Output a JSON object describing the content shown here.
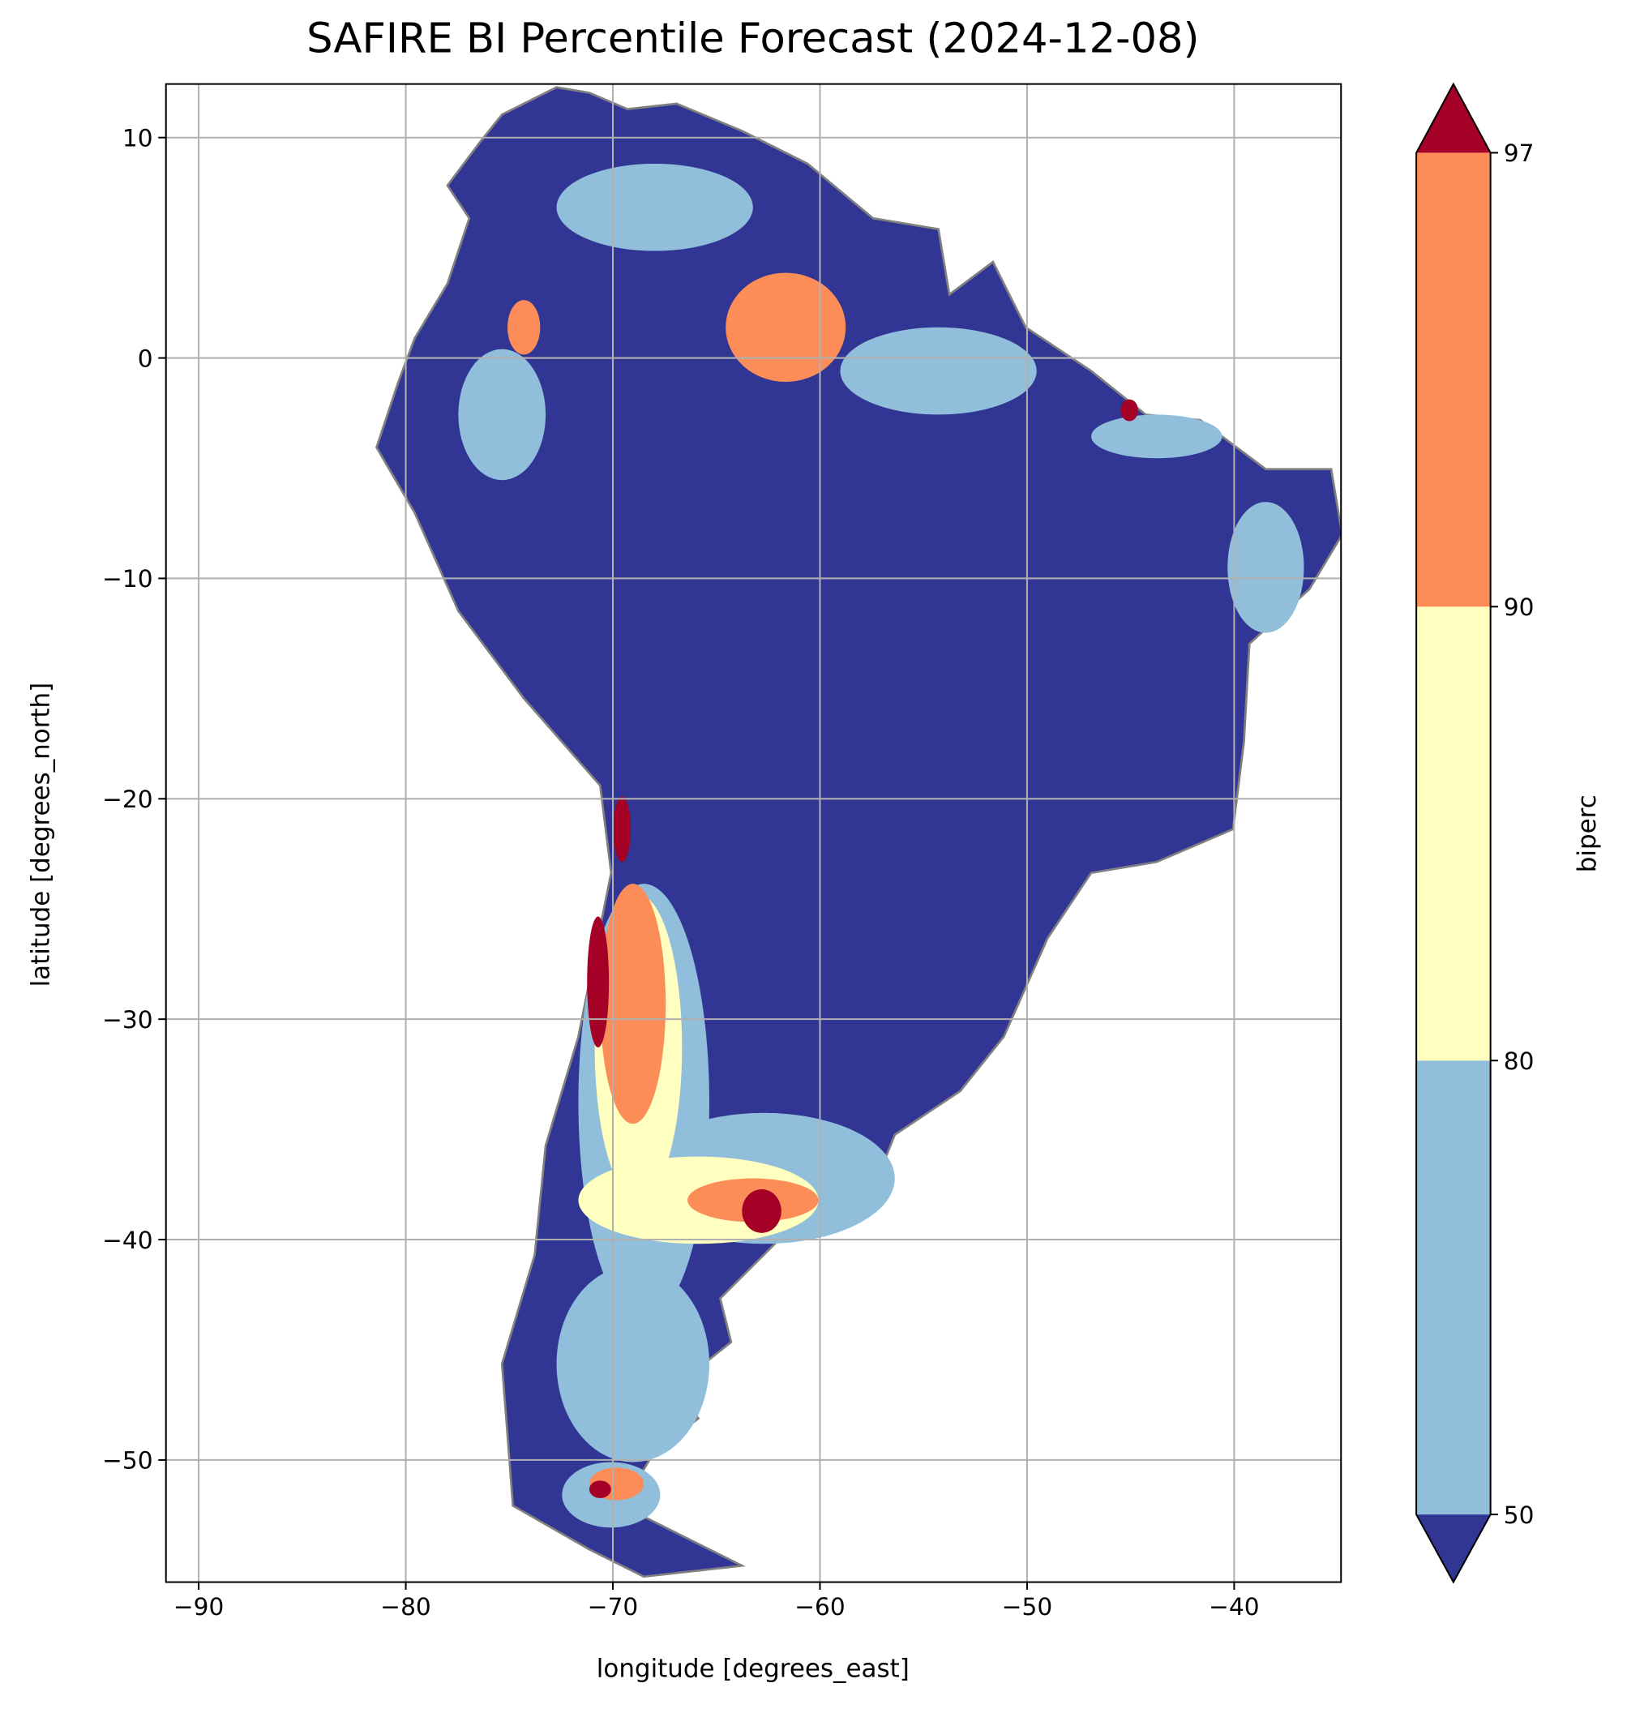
{
  "chart_data": {
    "type": "map",
    "title": "SAFIRE BI Percentile Forecast (2024-12-08)",
    "xlabel": "longitude [degrees_east]",
    "ylabel": "latitude [degrees_north]",
    "xlim": [
      -91.58,
      -34.84
    ],
    "ylim": [
      -55.54,
      12.43
    ],
    "xticks": [
      {
        "value": -90,
        "label": "−90"
      },
      {
        "value": -80,
        "label": "−80"
      },
      {
        "value": -70,
        "label": "−70"
      },
      {
        "value": -60,
        "label": "−60"
      },
      {
        "value": -50,
        "label": "−50"
      },
      {
        "value": -40,
        "label": "−40"
      }
    ],
    "yticks": [
      {
        "value": -50,
        "label": "−50"
      },
      {
        "value": -40,
        "label": "−40"
      },
      {
        "value": -30,
        "label": "−30"
      },
      {
        "value": -20,
        "label": "−20"
      },
      {
        "value": -10,
        "label": "−10"
      },
      0,
      10
    ],
    "grid": true,
    "grid_color": "#b0b0b0",
    "border_color": "#808080",
    "colorbar": {
      "label": "biperc",
      "boundaries": [
        50,
        80,
        90,
        97
      ],
      "extend": "both",
      "colors": [
        "#313695",
        "#91bfdb",
        "#ffffbf",
        "#fc8d59",
        "#a50026"
      ]
    }
  }
}
